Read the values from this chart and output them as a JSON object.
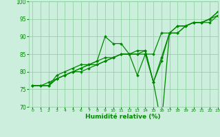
{
  "xlabel": "Humidité relative (%)",
  "xlim": [
    -0.5,
    23
  ],
  "ylim": [
    70,
    100
  ],
  "xticks": [
    0,
    1,
    2,
    3,
    4,
    5,
    6,
    7,
    8,
    9,
    10,
    11,
    12,
    13,
    14,
    15,
    16,
    17,
    18,
    19,
    20,
    21,
    22,
    23
  ],
  "yticks": [
    70,
    75,
    80,
    85,
    90,
    95,
    100
  ],
  "background_color": "#cceedd",
  "grid_color": "#88cc99",
  "line_color": "#008800",
  "series": [
    [
      76,
      76,
      77,
      78,
      79,
      80,
      81,
      82,
      82,
      83,
      84,
      85,
      85,
      85,
      85,
      85,
      91,
      91,
      93,
      93,
      94,
      94,
      94,
      96
    ],
    [
      76,
      76,
      76,
      78,
      79,
      80,
      80,
      81,
      82,
      83,
      84,
      85,
      85,
      79,
      85,
      77,
      83,
      91,
      93,
      93,
      94,
      94,
      95,
      97
    ],
    [
      76,
      76,
      76,
      78,
      79,
      80,
      81,
      82,
      83,
      90,
      88,
      88,
      85,
      85,
      86,
      77,
      84,
      91,
      91,
      93,
      94,
      94,
      95,
      97
    ],
    [
      76,
      76,
      76,
      79,
      80,
      81,
      82,
      82,
      83,
      84,
      84,
      85,
      85,
      86,
      86,
      77,
      65,
      91,
      91,
      93,
      94,
      94,
      95,
      96
    ]
  ]
}
